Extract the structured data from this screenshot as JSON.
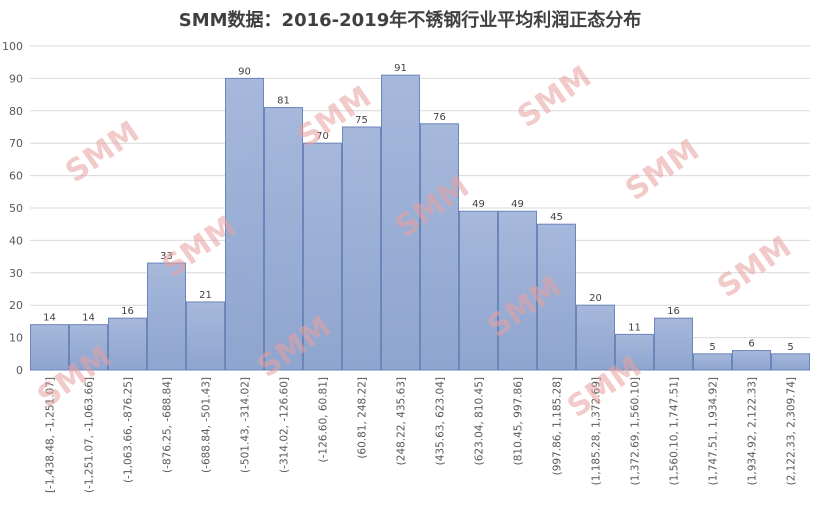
{
  "chart_data": {
    "type": "bar",
    "title": "SMM数据：2016-2019年不锈钢行业平均利润正态分布",
    "xlabel": "",
    "ylabel": "",
    "ylim": [
      0,
      100
    ],
    "yticks": [
      0,
      10,
      20,
      30,
      40,
      50,
      60,
      70,
      80,
      90,
      100
    ],
    "grid": true,
    "categories": [
      "[-1,438.48, -1,251.07]",
      "(-1,251.07, -1,063.66]",
      "(-1,063.66, -876.25]",
      "(-876.25, -688.84]",
      "(-688.84, -501.43]",
      "(-501.43, -314.02]",
      "(-314.02, -126.60]",
      "(-126.60, 60.81]",
      "(60.81, 248.22]",
      "(248.22, 435.63]",
      "(435.63, 623.04]",
      "(623.04, 810.45]",
      "(810.45, 997.86]",
      "(997.86, 1,185.28]",
      "(1,185.28, 1,372.69]",
      "(1,372.69, 1,560.10]",
      "(1,560.10, 1,747.51]",
      "(1,747.51, 1,934.92]",
      "(1,934.92, 2,122.33]",
      "(2,122.33, 2,309.74]"
    ],
    "values": [
      14,
      14,
      16,
      33,
      21,
      90,
      81,
      70,
      75,
      91,
      76,
      49,
      49,
      45,
      20,
      11,
      16,
      5,
      6,
      5
    ],
    "colors": {
      "bar_top": "#a6b8db",
      "bar_bottom": "#8ea5cf",
      "bar_stroke": "#6c86ba",
      "grid": "#d9d9d9",
      "axis_text": "#595959",
      "label_text": "#404040",
      "watermark": "#e8a0a0"
    },
    "watermark": "SMM"
  }
}
